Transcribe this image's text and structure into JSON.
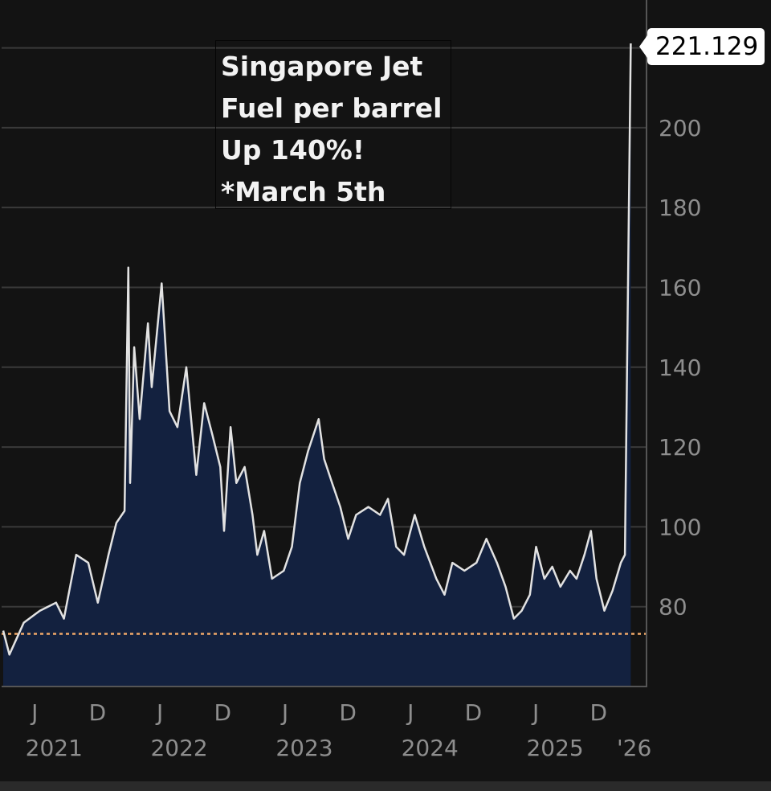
{
  "chart_data": {
    "type": "area",
    "title": "",
    "annotation": [
      "Singapore Jet",
      "Fuel per barrel",
      "Up 140%!",
      "*March 5th"
    ],
    "last_value_label": "221.129",
    "xlim": [
      "2021-03-01",
      "2026-04-20"
    ],
    "ylim": [
      60,
      232
    ],
    "grid": true,
    "y_ticks": [
      80,
      100,
      120,
      140,
      160,
      180,
      200,
      220
    ],
    "y_tick_labels": [
      "80",
      "100",
      "120",
      "140",
      "160",
      "180",
      "200"
    ],
    "x_month_ticks": [
      {
        "date": "2021-06-01",
        "label": "J"
      },
      {
        "date": "2021-12-01",
        "label": "D"
      },
      {
        "date": "2022-06-01",
        "label": "J"
      },
      {
        "date": "2022-12-01",
        "label": "D"
      },
      {
        "date": "2023-06-01",
        "label": "J"
      },
      {
        "date": "2023-12-01",
        "label": "D"
      },
      {
        "date": "2024-06-01",
        "label": "J"
      },
      {
        "date": "2024-12-01",
        "label": "D"
      },
      {
        "date": "2025-06-01",
        "label": "J"
      },
      {
        "date": "2025-12-01",
        "label": "D"
      }
    ],
    "x_year_labels": [
      {
        "date": "2021-06-01",
        "label": "2021"
      },
      {
        "date": "2022-06-01",
        "label": "2022"
      },
      {
        "date": "2023-06-01",
        "label": "2023"
      },
      {
        "date": "2024-06-01",
        "label": "2024"
      },
      {
        "date": "2025-06-01",
        "label": "2025"
      },
      {
        "date": "2026-03-01",
        "label": "'26"
      }
    ],
    "reference_line": {
      "value": 73.2,
      "color": "#f0a868",
      "style": "dashed"
    },
    "colors": {
      "line": "#e2e2e2",
      "fill": "#13213f",
      "grid": "#3a3a3a",
      "axis": "#555555"
    },
    "series": [
      {
        "x": [
          "2021-03-01",
          "2021-03-19",
          "2021-04-30",
          "2021-06-16",
          "2021-08-02",
          "2021-08-25",
          "2021-09-30",
          "2021-11-04",
          "2021-12-02",
          "2022-01-02",
          "2022-01-25",
          "2022-02-18",
          "2022-03-01",
          "2022-03-06",
          "2022-03-18",
          "2022-04-03",
          "2022-04-27",
          "2022-05-08",
          "2022-06-06",
          "2022-06-29",
          "2022-07-22",
          "2022-08-17",
          "2022-09-15",
          "2022-10-08",
          "2022-11-01",
          "2022-11-24",
          "2022-12-05",
          "2022-12-24",
          "2023-01-10",
          "2023-02-03",
          "2023-02-26",
          "2023-03-12",
          "2023-04-01",
          "2023-04-24",
          "2023-05-28",
          "2023-06-21",
          "2023-07-14",
          "2023-08-07",
          "2023-09-07",
          "2023-09-23",
          "2023-10-16",
          "2023-11-09",
          "2023-12-02",
          "2023-12-25",
          "2024-01-30",
          "2024-03-04",
          "2024-03-27",
          "2024-04-20",
          "2024-05-13",
          "2024-06-13",
          "2024-07-11",
          "2024-08-15",
          "2024-09-08",
          "2024-10-01",
          "2024-11-05",
          "2024-12-10",
          "2025-01-08",
          "2025-02-08",
          "2025-03-05",
          "2025-03-29",
          "2025-04-21",
          "2025-05-15",
          "2025-06-02",
          "2025-06-26",
          "2025-07-19",
          "2025-08-12",
          "2025-09-09",
          "2025-09-28",
          "2025-10-21",
          "2025-11-09",
          "2025-11-25",
          "2025-12-18",
          "2026-01-11",
          "2026-02-04",
          "2026-02-16",
          "2026-03-05"
        ],
        "y": [
          74,
          68,
          76,
          79,
          81,
          77,
          93,
          91,
          81,
          93,
          101,
          104,
          165,
          111,
          145,
          127,
          151,
          135,
          161,
          129,
          125,
          140,
          113,
          131,
          123,
          115,
          99,
          125,
          111,
          115,
          103,
          93,
          99,
          87,
          89,
          95,
          111,
          119,
          127,
          117,
          111,
          105,
          97,
          103,
          105,
          103,
          107,
          95,
          93,
          103,
          95,
          87,
          83,
          91,
          89,
          91,
          97,
          91,
          85,
          77,
          79,
          83,
          95,
          87,
          90,
          85,
          89,
          87,
          93,
          99,
          87,
          79,
          84,
          91,
          93,
          221.129
        ]
      }
    ]
  }
}
